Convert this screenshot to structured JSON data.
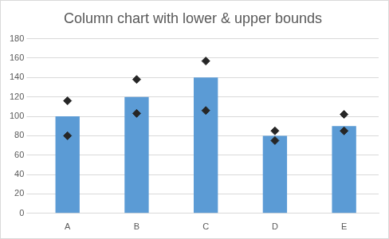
{
  "chart_data": {
    "type": "bar",
    "title": "Column chart with lower & upper bounds",
    "categories": [
      "A",
      "B",
      "C",
      "D",
      "E"
    ],
    "values": [
      100,
      120,
      140,
      80,
      90
    ],
    "lower": [
      80,
      103,
      106,
      75,
      85
    ],
    "upper": [
      116,
      138,
      157,
      85,
      102
    ],
    "color": "#5b9bd5",
    "marker": "diamond",
    "ylim": [
      0,
      180
    ],
    "yticks": [
      0,
      20,
      40,
      60,
      80,
      100,
      120,
      140,
      160,
      180
    ],
    "grid": true
  }
}
